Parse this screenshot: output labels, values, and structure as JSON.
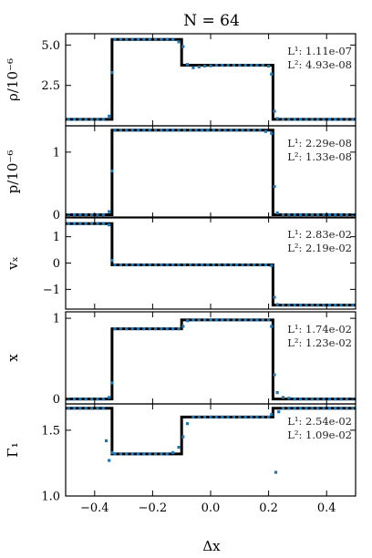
{
  "figure": {
    "title": "N = 64",
    "xlabel": "Δx",
    "xlim": [
      -0.5,
      0.5
    ],
    "xticks": [
      -0.4,
      -0.2,
      0.0,
      0.2,
      0.4
    ],
    "xtick_labels": [
      "−0.4",
      "−0.2",
      "0.0",
      "0.2",
      "0.4"
    ],
    "colors": {
      "exact": "#000000",
      "numerical": "#1f77b4"
    }
  },
  "chart_data": [
    {
      "type": "line",
      "ylabel": "ρ/10⁻⁶",
      "ylim": [
        0.0,
        5.7
      ],
      "yticks": [
        2.5,
        5.0
      ],
      "ytick_labels": [
        "2.5",
        "5.0"
      ],
      "error_labels": [
        "L¹: 1.11e-07",
        "L²: 4.93e-08"
      ],
      "exact": {
        "x": [
          -0.5,
          -0.34,
          -0.34,
          -0.1,
          -0.1,
          0.215,
          0.215,
          0.5
        ],
        "y": [
          0.4,
          0.4,
          5.35,
          5.35,
          3.75,
          3.75,
          0.4,
          0.4
        ]
      },
      "numerical": {
        "x": [
          -0.49,
          -0.47,
          -0.45,
          -0.43,
          -0.41,
          -0.39,
          -0.37,
          -0.35,
          -0.34,
          -0.33,
          -0.31,
          -0.29,
          -0.27,
          -0.25,
          -0.23,
          -0.21,
          -0.19,
          -0.17,
          -0.15,
          -0.13,
          -0.11,
          -0.095,
          -0.08,
          -0.06,
          -0.04,
          -0.02,
          0.0,
          0.02,
          0.04,
          0.06,
          0.08,
          0.1,
          0.12,
          0.14,
          0.16,
          0.18,
          0.2,
          0.21,
          0.22,
          0.23,
          0.25,
          0.27,
          0.29,
          0.31,
          0.33,
          0.35,
          0.37,
          0.39,
          0.41,
          0.43,
          0.45,
          0.47,
          0.49
        ],
        "y": [
          0.4,
          0.4,
          0.4,
          0.4,
          0.4,
          0.4,
          0.4,
          0.6,
          3.3,
          5.35,
          5.35,
          5.35,
          5.35,
          5.35,
          5.35,
          5.35,
          5.35,
          5.35,
          5.35,
          5.35,
          5.2,
          4.9,
          3.8,
          3.6,
          3.65,
          3.7,
          3.72,
          3.75,
          3.75,
          3.75,
          3.75,
          3.75,
          3.75,
          3.75,
          3.75,
          3.75,
          3.7,
          3.2,
          0.9,
          0.45,
          0.4,
          0.4,
          0.4,
          0.4,
          0.4,
          0.4,
          0.4,
          0.4,
          0.4,
          0.4,
          0.4,
          0.4,
          0.4
        ]
      }
    },
    {
      "type": "line",
      "ylabel": "p/10⁻⁶",
      "ylim": [
        -0.05,
        1.42
      ],
      "yticks": [
        0,
        1
      ],
      "ytick_labels": [
        "0",
        "1"
      ],
      "error_labels": [
        "L¹: 2.29e-08",
        "L²: 1.33e-08"
      ],
      "exact": {
        "x": [
          -0.5,
          -0.34,
          -0.34,
          0.215,
          0.215,
          0.5
        ],
        "y": [
          0.0,
          0.0,
          1.35,
          1.35,
          0.0,
          0.0
        ]
      },
      "numerical": {
        "x": [
          -0.49,
          -0.47,
          -0.45,
          -0.43,
          -0.41,
          -0.39,
          -0.37,
          -0.35,
          -0.34,
          -0.33,
          -0.31,
          -0.29,
          -0.27,
          -0.25,
          -0.23,
          -0.21,
          -0.19,
          -0.17,
          -0.15,
          -0.13,
          -0.11,
          -0.09,
          -0.07,
          -0.05,
          -0.03,
          -0.01,
          0.01,
          0.03,
          0.05,
          0.07,
          0.09,
          0.11,
          0.13,
          0.15,
          0.17,
          0.19,
          0.21,
          0.22,
          0.23,
          0.25,
          0.27,
          0.29,
          0.31,
          0.33,
          0.35,
          0.37,
          0.39,
          0.41,
          0.43,
          0.45,
          0.47,
          0.49
        ],
        "y": [
          0.0,
          0.0,
          0.0,
          0.0,
          0.0,
          0.0,
          0.0,
          0.05,
          0.7,
          1.35,
          1.35,
          1.35,
          1.35,
          1.35,
          1.35,
          1.35,
          1.35,
          1.35,
          1.35,
          1.35,
          1.35,
          1.35,
          1.35,
          1.35,
          1.35,
          1.35,
          1.35,
          1.35,
          1.35,
          1.35,
          1.35,
          1.35,
          1.35,
          1.35,
          1.35,
          1.33,
          1.3,
          0.45,
          0.03,
          0.0,
          0.0,
          0.0,
          0.0,
          0.0,
          0.0,
          0.0,
          0.0,
          0.0,
          0.0,
          0.0,
          0.0,
          0.0
        ]
      }
    },
    {
      "type": "line",
      "ylabel": "vₓ",
      "ylim": [
        -1.75,
        1.75
      ],
      "yticks": [
        -1,
        0,
        1
      ],
      "ytick_labels": [
        "−1",
        "0",
        "1"
      ],
      "error_labels": [
        "L¹: 2.83e-02",
        "L²: 2.19e-02"
      ],
      "exact": {
        "x": [
          -0.5,
          -0.34,
          -0.34,
          0.215,
          0.215,
          0.5
        ],
        "y": [
          1.5,
          1.5,
          -0.07,
          -0.07,
          -1.6,
          -1.6
        ]
      },
      "numerical": {
        "x": [
          -0.49,
          -0.47,
          -0.45,
          -0.43,
          -0.41,
          -0.39,
          -0.37,
          -0.35,
          -0.34,
          -0.33,
          -0.31,
          -0.29,
          -0.27,
          -0.25,
          -0.23,
          -0.21,
          -0.19,
          -0.17,
          -0.15,
          -0.13,
          -0.11,
          -0.09,
          -0.07,
          -0.05,
          -0.03,
          -0.01,
          0.01,
          0.03,
          0.05,
          0.07,
          0.09,
          0.11,
          0.13,
          0.15,
          0.17,
          0.19,
          0.21,
          0.22,
          0.23,
          0.25,
          0.27,
          0.29,
          0.31,
          0.33,
          0.35,
          0.37,
          0.39,
          0.41,
          0.43,
          0.45,
          0.47,
          0.49
        ],
        "y": [
          1.5,
          1.5,
          1.5,
          1.5,
          1.5,
          1.5,
          1.5,
          1.45,
          0.1,
          -0.07,
          -0.07,
          -0.07,
          -0.07,
          -0.07,
          -0.07,
          -0.07,
          -0.07,
          -0.07,
          -0.07,
          -0.07,
          -0.07,
          -0.07,
          -0.07,
          -0.07,
          -0.07,
          -0.07,
          -0.07,
          -0.07,
          -0.07,
          -0.07,
          -0.07,
          -0.07,
          -0.07,
          -0.07,
          -0.07,
          -0.07,
          -0.1,
          -1.3,
          -1.58,
          -1.6,
          -1.6,
          -1.6,
          -1.6,
          -1.6,
          -1.6,
          -1.6,
          -1.6,
          -1.6,
          -1.6,
          -1.6,
          -1.6,
          -1.6
        ]
      }
    },
    {
      "type": "line",
      "ylabel": "x",
      "ylim": [
        -0.06,
        1.08
      ],
      "yticks": [
        0,
        1
      ],
      "ytick_labels": [
        "0",
        "1"
      ],
      "error_labels": [
        "L¹: 1.74e-02",
        "L²: 1.23e-02"
      ],
      "exact": {
        "x": [
          -0.5,
          -0.34,
          -0.34,
          -0.1,
          -0.1,
          0.215,
          0.215,
          0.5
        ],
        "y": [
          0.0,
          0.0,
          0.87,
          0.87,
          0.98,
          0.98,
          0.0,
          0.0
        ]
      },
      "numerical": {
        "x": [
          -0.49,
          -0.47,
          -0.45,
          -0.43,
          -0.41,
          -0.39,
          -0.37,
          -0.35,
          -0.34,
          -0.33,
          -0.31,
          -0.29,
          -0.27,
          -0.25,
          -0.23,
          -0.21,
          -0.19,
          -0.17,
          -0.15,
          -0.13,
          -0.11,
          -0.095,
          -0.08,
          -0.06,
          -0.04,
          -0.02,
          0.0,
          0.02,
          0.04,
          0.06,
          0.08,
          0.1,
          0.12,
          0.14,
          0.16,
          0.18,
          0.2,
          0.21,
          0.22,
          0.23,
          0.25,
          0.27,
          0.29,
          0.31,
          0.33,
          0.35,
          0.37,
          0.39,
          0.41,
          0.43,
          0.45,
          0.47,
          0.49
        ],
        "y": [
          0.0,
          0.0,
          0.0,
          0.0,
          0.0,
          0.0,
          0.0,
          0.02,
          0.2,
          0.87,
          0.87,
          0.87,
          0.87,
          0.87,
          0.87,
          0.87,
          0.87,
          0.87,
          0.87,
          0.87,
          0.87,
          0.9,
          0.97,
          0.98,
          0.98,
          0.98,
          0.98,
          0.98,
          0.98,
          0.98,
          0.98,
          0.98,
          0.98,
          0.98,
          0.98,
          0.98,
          0.98,
          0.9,
          0.3,
          0.08,
          0.02,
          0.01,
          0.0,
          0.0,
          0.0,
          0.0,
          0.0,
          0.0,
          0.0,
          0.0,
          0.0,
          0.0,
          0.0
        ]
      }
    },
    {
      "type": "line",
      "ylabel": "Γ₁",
      "ylim": [
        1.0,
        1.7
      ],
      "yticks": [
        1.0,
        1.5
      ],
      "ytick_labels": [
        "1.0",
        "1.5"
      ],
      "error_labels": [
        "L¹: 2.54e-02",
        "L²: 1.09e-02"
      ],
      "exact": {
        "x": [
          -0.5,
          -0.34,
          -0.34,
          -0.1,
          -0.1,
          0.215,
          0.215,
          0.5
        ],
        "y": [
          1.667,
          1.667,
          1.32,
          1.32,
          1.6,
          1.6,
          1.667,
          1.667
        ]
      },
      "numerical": {
        "x": [
          -0.49,
          -0.47,
          -0.45,
          -0.43,
          -0.41,
          -0.39,
          -0.37,
          -0.36,
          -0.35,
          -0.34,
          -0.33,
          -0.31,
          -0.29,
          -0.27,
          -0.25,
          -0.23,
          -0.21,
          -0.19,
          -0.17,
          -0.15,
          -0.13,
          -0.11,
          -0.095,
          -0.08,
          -0.06,
          -0.04,
          -0.02,
          0.0,
          0.02,
          0.04,
          0.06,
          0.08,
          0.1,
          0.12,
          0.14,
          0.16,
          0.18,
          0.2,
          0.21,
          0.225,
          0.235,
          0.25,
          0.27,
          0.29,
          0.31,
          0.33,
          0.35,
          0.37,
          0.39,
          0.41,
          0.43,
          0.45,
          0.47,
          0.49
        ],
        "y": [
          1.667,
          1.667,
          1.667,
          1.667,
          1.667,
          1.667,
          1.667,
          1.42,
          1.27,
          1.33,
          1.32,
          1.32,
          1.32,
          1.32,
          1.32,
          1.32,
          1.32,
          1.32,
          1.32,
          1.32,
          1.33,
          1.37,
          1.45,
          1.55,
          1.6,
          1.6,
          1.6,
          1.6,
          1.6,
          1.6,
          1.6,
          1.6,
          1.6,
          1.6,
          1.6,
          1.6,
          1.6,
          1.6,
          1.62,
          1.18,
          1.64,
          1.667,
          1.667,
          1.667,
          1.667,
          1.667,
          1.667,
          1.667,
          1.667,
          1.667,
          1.667,
          1.667,
          1.667,
          1.667
        ]
      }
    }
  ]
}
